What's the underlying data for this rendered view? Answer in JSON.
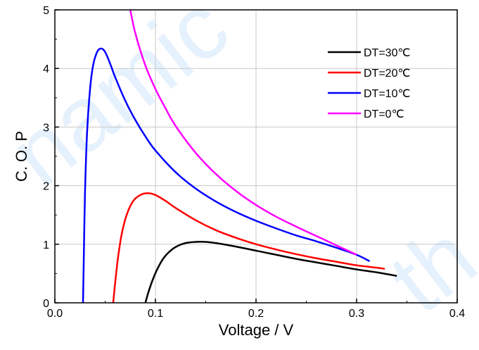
{
  "watermarks": {
    "left": "namic",
    "right": "th"
  },
  "chart_data": {
    "type": "line",
    "title": "",
    "xlabel": "Voltage / V",
    "ylabel": "C. O. P",
    "xlim": [
      0.0,
      0.4
    ],
    "ylim": [
      0,
      5
    ],
    "xticks": [
      "0.0",
      "0.1",
      "0.2",
      "0.3",
      "0.4"
    ],
    "yticks": [
      "0",
      "1",
      "2",
      "3",
      "4",
      "5"
    ],
    "grid": true,
    "legend_position": "top-right",
    "series": [
      {
        "name": "DT=30℃",
        "color": "#000000",
        "x": [
          0.09,
          0.093,
          0.097,
          0.102,
          0.108,
          0.115,
          0.122,
          0.13,
          0.14,
          0.15,
          0.16,
          0.18,
          0.2,
          0.22,
          0.24,
          0.26,
          0.28,
          0.3,
          0.32,
          0.34
        ],
        "y": [
          0.0,
          0.18,
          0.38,
          0.58,
          0.76,
          0.89,
          0.97,
          1.02,
          1.04,
          1.04,
          1.02,
          0.96,
          0.89,
          0.82,
          0.75,
          0.69,
          0.63,
          0.57,
          0.52,
          0.46
        ]
      },
      {
        "name": "DT=20℃",
        "color": "#ff0000",
        "x": [
          0.058,
          0.06,
          0.063,
          0.067,
          0.072,
          0.078,
          0.085,
          0.092,
          0.1,
          0.11,
          0.12,
          0.14,
          0.16,
          0.18,
          0.2,
          0.22,
          0.24,
          0.26,
          0.28,
          0.3,
          0.32,
          0.328
        ],
        "y": [
          0.0,
          0.35,
          0.8,
          1.22,
          1.53,
          1.74,
          1.84,
          1.87,
          1.84,
          1.74,
          1.62,
          1.41,
          1.24,
          1.11,
          1.0,
          0.91,
          0.83,
          0.76,
          0.7,
          0.64,
          0.6,
          0.58
        ]
      },
      {
        "name": "DT=10℃",
        "color": "#0000ff",
        "x": [
          0.028,
          0.029,
          0.03,
          0.032,
          0.035,
          0.038,
          0.042,
          0.046,
          0.05,
          0.055,
          0.06,
          0.07,
          0.08,
          0.09,
          0.1,
          0.12,
          0.14,
          0.16,
          0.18,
          0.2,
          0.22,
          0.24,
          0.26,
          0.28,
          0.3,
          0.313
        ],
        "y": [
          0.0,
          1.0,
          1.9,
          2.9,
          3.65,
          4.05,
          4.28,
          4.34,
          4.28,
          4.08,
          3.85,
          3.45,
          3.12,
          2.84,
          2.6,
          2.23,
          1.95,
          1.73,
          1.55,
          1.4,
          1.27,
          1.15,
          1.05,
          0.94,
          0.82,
          0.71
        ]
      },
      {
        "name": "DT=0℃",
        "color": "#ff00ff",
        "x": [
          0.075,
          0.08,
          0.09,
          0.1,
          0.11,
          0.12,
          0.14,
          0.16,
          0.18,
          0.2,
          0.22,
          0.24,
          0.26,
          0.28,
          0.3
        ],
        "y": [
          5.0,
          4.6,
          4.05,
          3.65,
          3.32,
          3.02,
          2.56,
          2.2,
          1.91,
          1.67,
          1.47,
          1.3,
          1.14,
          0.98,
          0.82
        ]
      }
    ]
  }
}
